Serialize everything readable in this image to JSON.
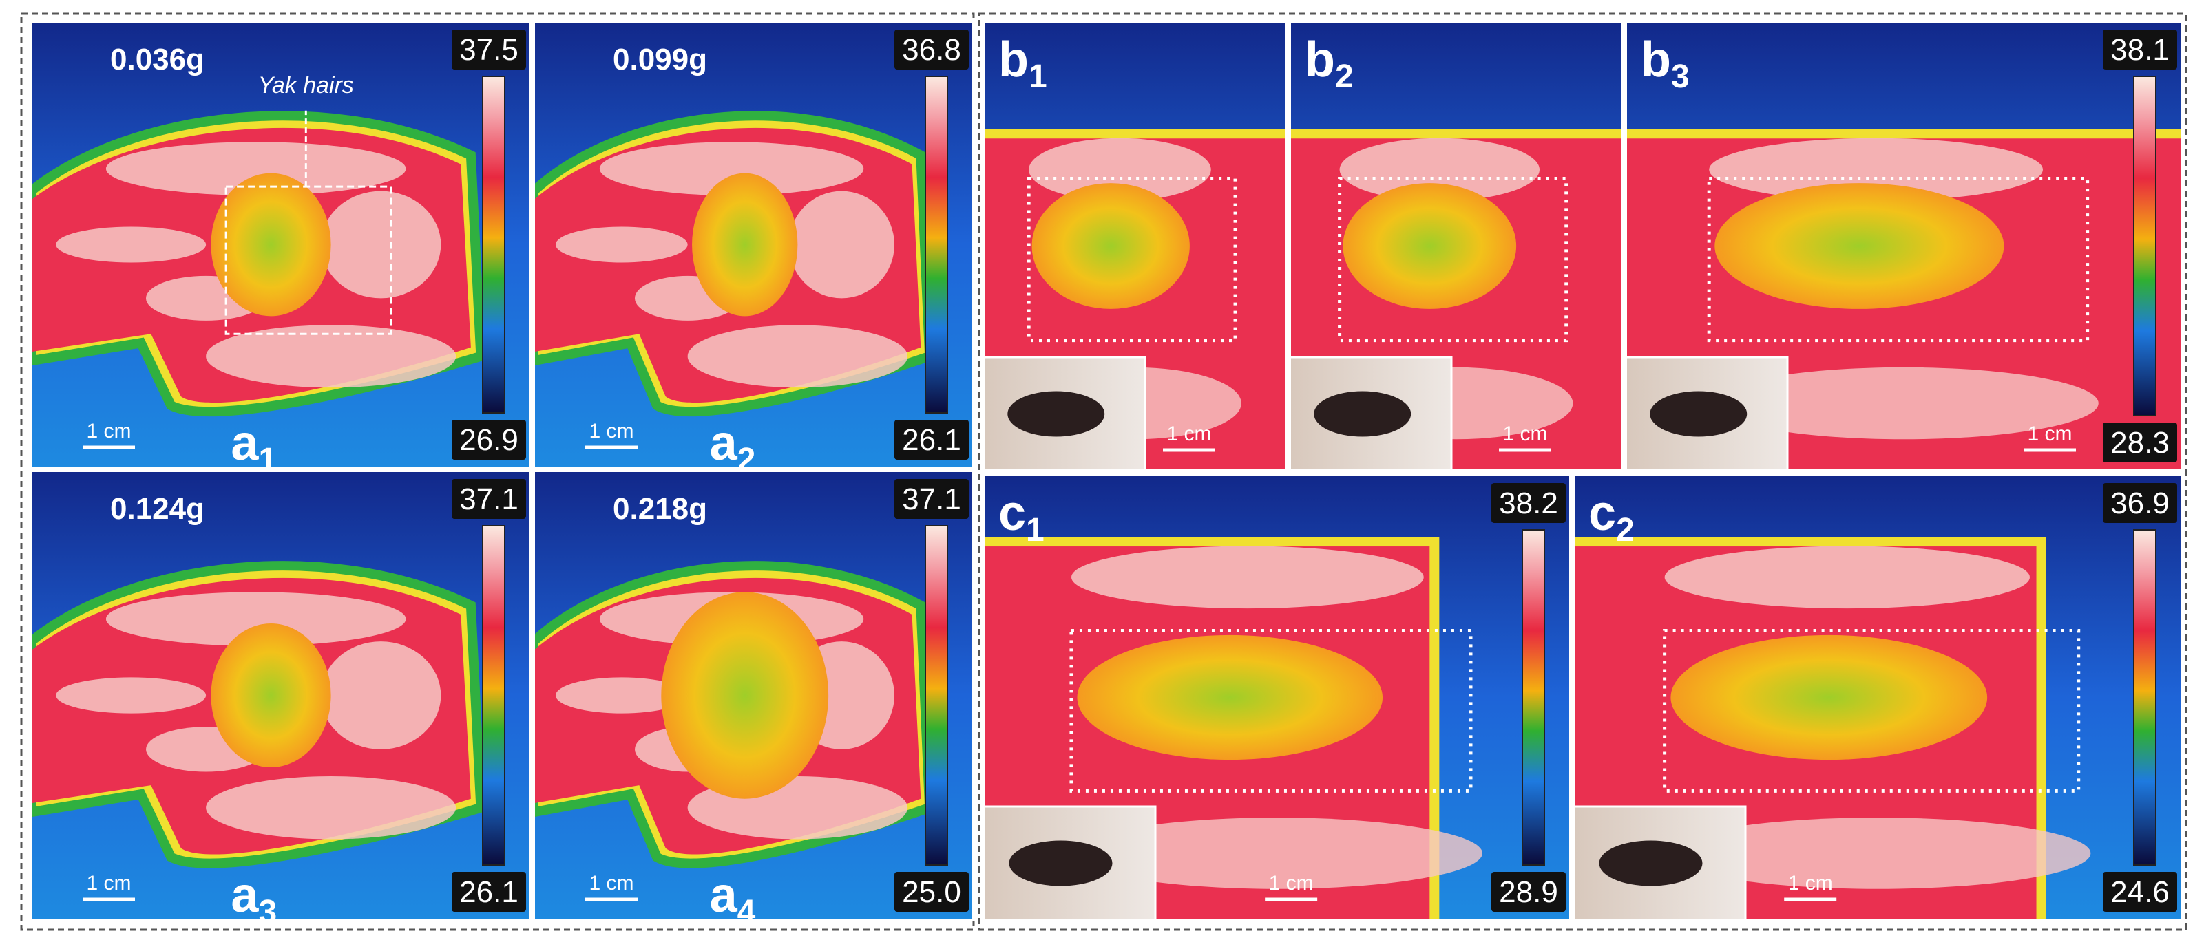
{
  "panels": [
    {
      "label": "a",
      "sub": "1",
      "mass": "0.036g",
      "max": "37.5",
      "min": "26.9",
      "scale": "1 cm",
      "annotation": "Yak hairs"
    },
    {
      "label": "a",
      "sub": "2",
      "mass": "0.099g",
      "max": "36.8",
      "min": "26.1",
      "scale": "1 cm"
    },
    {
      "label": "a",
      "sub": "3",
      "mass": "0.124g",
      "max": "37.1",
      "min": "26.1",
      "scale": "1 cm"
    },
    {
      "label": "a",
      "sub": "4",
      "mass": "0.218g",
      "max": "37.1",
      "min": "25.0",
      "scale": "1 cm"
    },
    {
      "label": "b",
      "sub": "1",
      "scale": "1 cm"
    },
    {
      "label": "b",
      "sub": "2",
      "scale": "1 cm"
    },
    {
      "label": "b",
      "sub": "3",
      "max": "38.1",
      "min": "28.3",
      "scale": "1 cm"
    },
    {
      "label": "c",
      "sub": "1",
      "max": "38.2",
      "min": "28.9",
      "scale": "1 cm"
    },
    {
      "label": "c",
      "sub": "2",
      "max": "36.9",
      "min": "24.6",
      "scale": "1 cm"
    }
  ]
}
